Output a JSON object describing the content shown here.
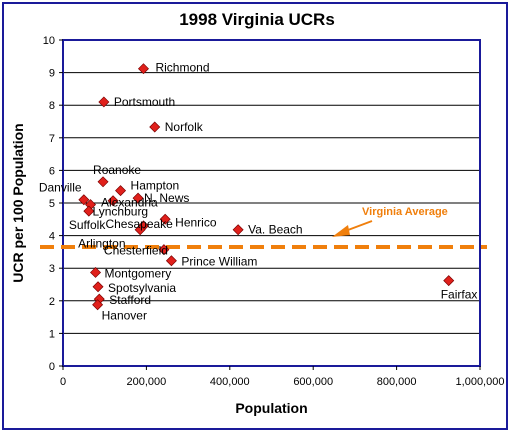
{
  "chart_data": {
    "type": "scatter",
    "title": "1998 Virginia UCRs",
    "xlabel": "Population",
    "ylabel": "UCR per 100 Population",
    "xlim": [
      0,
      1000000
    ],
    "ylim": [
      0,
      10
    ],
    "x_ticks": [
      "0",
      "200,000",
      "400,000",
      "600,000",
      "800,000",
      "1,000,000"
    ],
    "y_ticks": [
      "0",
      "1",
      "2",
      "3",
      "4",
      "5",
      "6",
      "7",
      "8",
      "9",
      "10"
    ],
    "grid": "horizontal",
    "marker_color": "#e0201b",
    "points": [
      {
        "label": "Richmond",
        "x": 193000,
        "y": 9.12,
        "highlight": true
      },
      {
        "label": "Portsmouth",
        "x": 98000,
        "y": 8.1
      },
      {
        "label": "Norfolk",
        "x": 220000,
        "y": 7.33
      },
      {
        "label": "Roanoke",
        "x": 96000,
        "y": 5.65
      },
      {
        "label": "Hampton",
        "x": 138000,
        "y": 5.38
      },
      {
        "label": "N. News",
        "x": 180000,
        "y": 5.15
      },
      {
        "label": "Danville",
        "x": 50000,
        "y": 5.1
      },
      {
        "label": "Alexandria",
        "x": 120000,
        "y": 5.07
      },
      {
        "label": "Lynchburg",
        "x": 66000,
        "y": 4.95
      },
      {
        "label": "Suffolk",
        "x": 62000,
        "y": 4.75
      },
      {
        "label": "Henrico",
        "x": 245000,
        "y": 4.5
      },
      {
        "label": "Chesapeake",
        "x": 193000,
        "y": 4.3
      },
      {
        "label": "Va. Beach",
        "x": 420000,
        "y": 4.18
      },
      {
        "label": "Arlington",
        "x": 185000,
        "y": 4.18
      },
      {
        "label": "Chesterfield",
        "x": 242000,
        "y": 3.57
      },
      {
        "label": "Prince William",
        "x": 260000,
        "y": 3.23
      },
      {
        "label": "Montgomery",
        "x": 78000,
        "y": 2.87
      },
      {
        "label": "Spotsylvania",
        "x": 84000,
        "y": 2.43
      },
      {
        "label": "Fairfax",
        "x": 925000,
        "y": 2.62
      },
      {
        "label": "Stafford",
        "x": 87000,
        "y": 2.05
      },
      {
        "label": "Hanover",
        "x": 83000,
        "y": 1.88
      }
    ],
    "reference_line": {
      "label": "Virginia Average",
      "y": 3.65,
      "color": "#f07f0c"
    }
  }
}
